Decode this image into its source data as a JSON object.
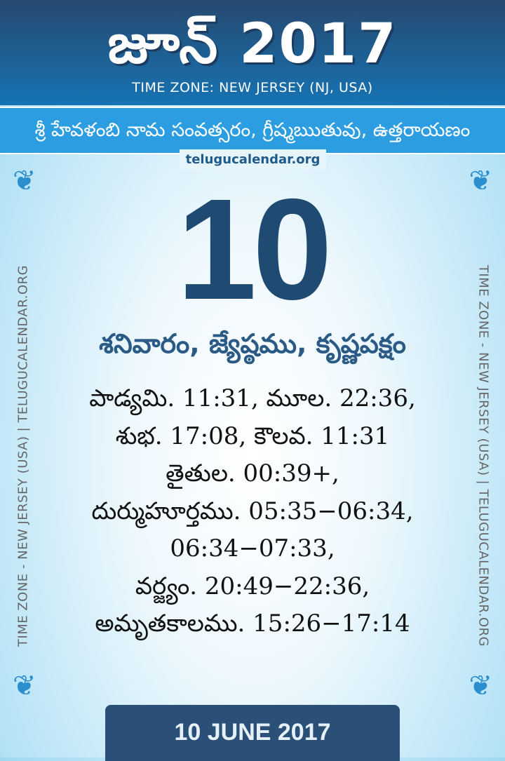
{
  "header": {
    "title": "జూన్ 2017",
    "timezone": "TIME ZONE: NEW JERSEY (NJ, USA)"
  },
  "band": {
    "text": "శ్రీ హేవళంబి నామ సంవత్సరం, గ్రీష్మఋతువు, ఉత్తరాయణం"
  },
  "site_label": "telugucalendar.org",
  "day_number": "10",
  "day_line": "శనివారం, జ్యేష్ఠము, కృష్ణపక్షం",
  "details": [
    "పాడ్యమి. 11:31, మూల. 22:36,",
    "శుభ. 17:08, కౌలవ. 11:31",
    "తైతుల. 00:39+,",
    "దుర్ముహూర్తము. 05:35−06:34,",
    "06:34−07:33,",
    "వర్జ్యం. 20:49−22:36,",
    "అమృతకాలము. 15:26−17:14"
  ],
  "side_text": "TIME ZONE - NEW JERSEY (USA) | TELUGUCALENDAR.ORG",
  "footer_date": "10 JUNE 2017",
  "colors": {
    "header": "#1f4f7d",
    "band": "#2d9de2",
    "day": "#1f4a72",
    "footer": "#2a5078"
  }
}
